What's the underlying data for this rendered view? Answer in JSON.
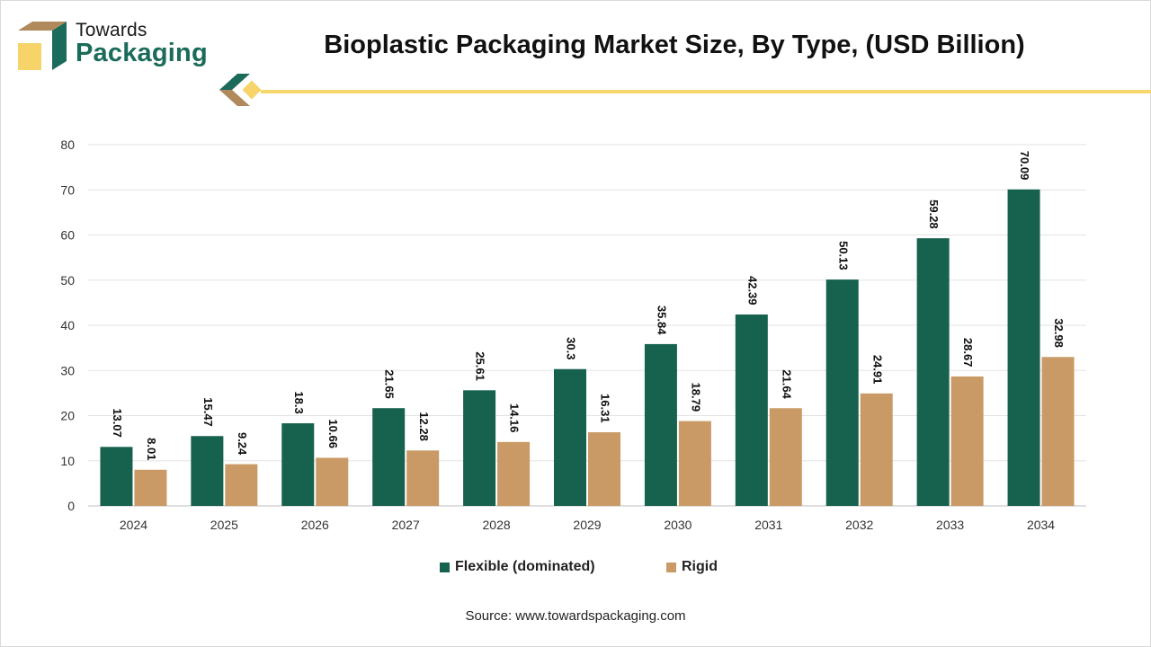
{
  "header": {
    "logo_line1": "Towards",
    "logo_line2": "Packaging",
    "title": "Bioplastic Packaging Market Size, By Type, (USD Billion)"
  },
  "colors": {
    "flexible": "#17614f",
    "rigid": "#c99a66",
    "accent_yellow": "#f5d76b",
    "logo_green": "#1b6b5a"
  },
  "icons": [
    "box-logo-icon",
    "diamond-divider-icon"
  ],
  "legend": {
    "flexible_label": "Flexible (dominated)",
    "rigid_label": "Rigid"
  },
  "source": "Source: www.towardspackaging.com",
  "chart_data": {
    "type": "bar",
    "title": "Bioplastic Packaging Market Size, By Type, (USD Billion)",
    "xlabel": "",
    "ylabel": "",
    "ylim": [
      0,
      80
    ],
    "yticks": [
      0,
      10,
      20,
      30,
      40,
      50,
      60,
      70,
      80
    ],
    "grid": true,
    "legend_position": "bottom",
    "categories": [
      "2024",
      "2025",
      "2026",
      "2027",
      "2028",
      "2029",
      "2030",
      "2031",
      "2032",
      "2033",
      "2034"
    ],
    "series": [
      {
        "name": "Flexible (dominated)",
        "values": [
          13.07,
          15.47,
          18.3,
          21.65,
          25.61,
          30.3,
          35.84,
          42.39,
          50.13,
          59.28,
          70.09
        ],
        "labels": [
          "13.07",
          "15.47",
          "18.3",
          "21.65",
          "25.61",
          "30.3",
          "35.84",
          "42.39",
          "50.13",
          "59.28",
          "70.09"
        ]
      },
      {
        "name": "Rigid",
        "values": [
          8.01,
          9.24,
          10.66,
          12.28,
          14.16,
          16.31,
          18.79,
          21.64,
          24.91,
          28.67,
          32.98
        ],
        "labels": [
          "8.01",
          "9.24",
          "10.66",
          "12.28",
          "14.16",
          "16.31",
          "18.79",
          "21.64",
          "24.91",
          "28.67",
          "32.98"
        ]
      }
    ]
  }
}
